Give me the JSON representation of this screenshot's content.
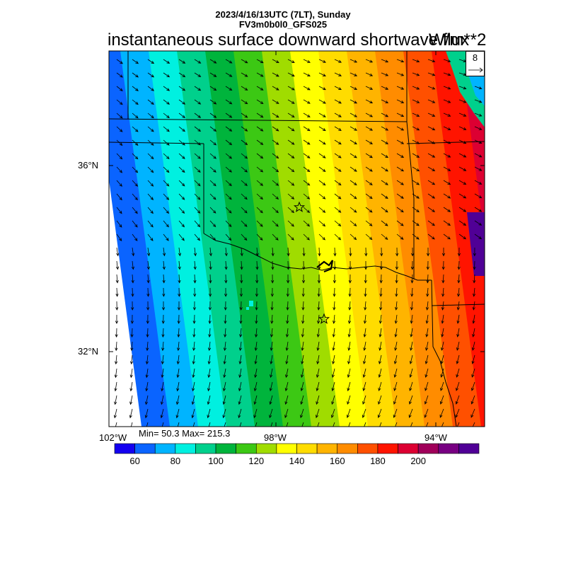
{
  "header": {
    "line1": "2023/4/16/13UTC (7LT), Sunday",
    "line2": "FV3m0b0l0_GFS025"
  },
  "title": {
    "main": "instantaneous surface downward shortwave flux",
    "units": "W/m**2"
  },
  "vector_reference": {
    "value": "8"
  },
  "stats": {
    "text": "Min= 50.3 Max= 215.3"
  },
  "axes": {
    "lat_labels": [
      "36°N",
      "32°N"
    ],
    "lon_labels": [
      "102°W",
      "98°W",
      "94°W"
    ]
  },
  "colorbar": {
    "colors": [
      "#1400f0",
      "#0a64ff",
      "#00b4ff",
      "#00f0e0",
      "#00d08c",
      "#00b43c",
      "#3cc814",
      "#a0dc00",
      "#ffff00",
      "#ffdc00",
      "#ffb400",
      "#ff8c00",
      "#ff5000",
      "#ff1400",
      "#dc0032",
      "#a0005a",
      "#780082",
      "#500096"
    ],
    "tick_labels": [
      "60",
      "80",
      "100",
      "120",
      "140",
      "160",
      "180",
      "200"
    ]
  },
  "map": {
    "region": "Southern Plains (Oklahoma / Texas)",
    "markers": [
      "star",
      "star"
    ]
  }
}
